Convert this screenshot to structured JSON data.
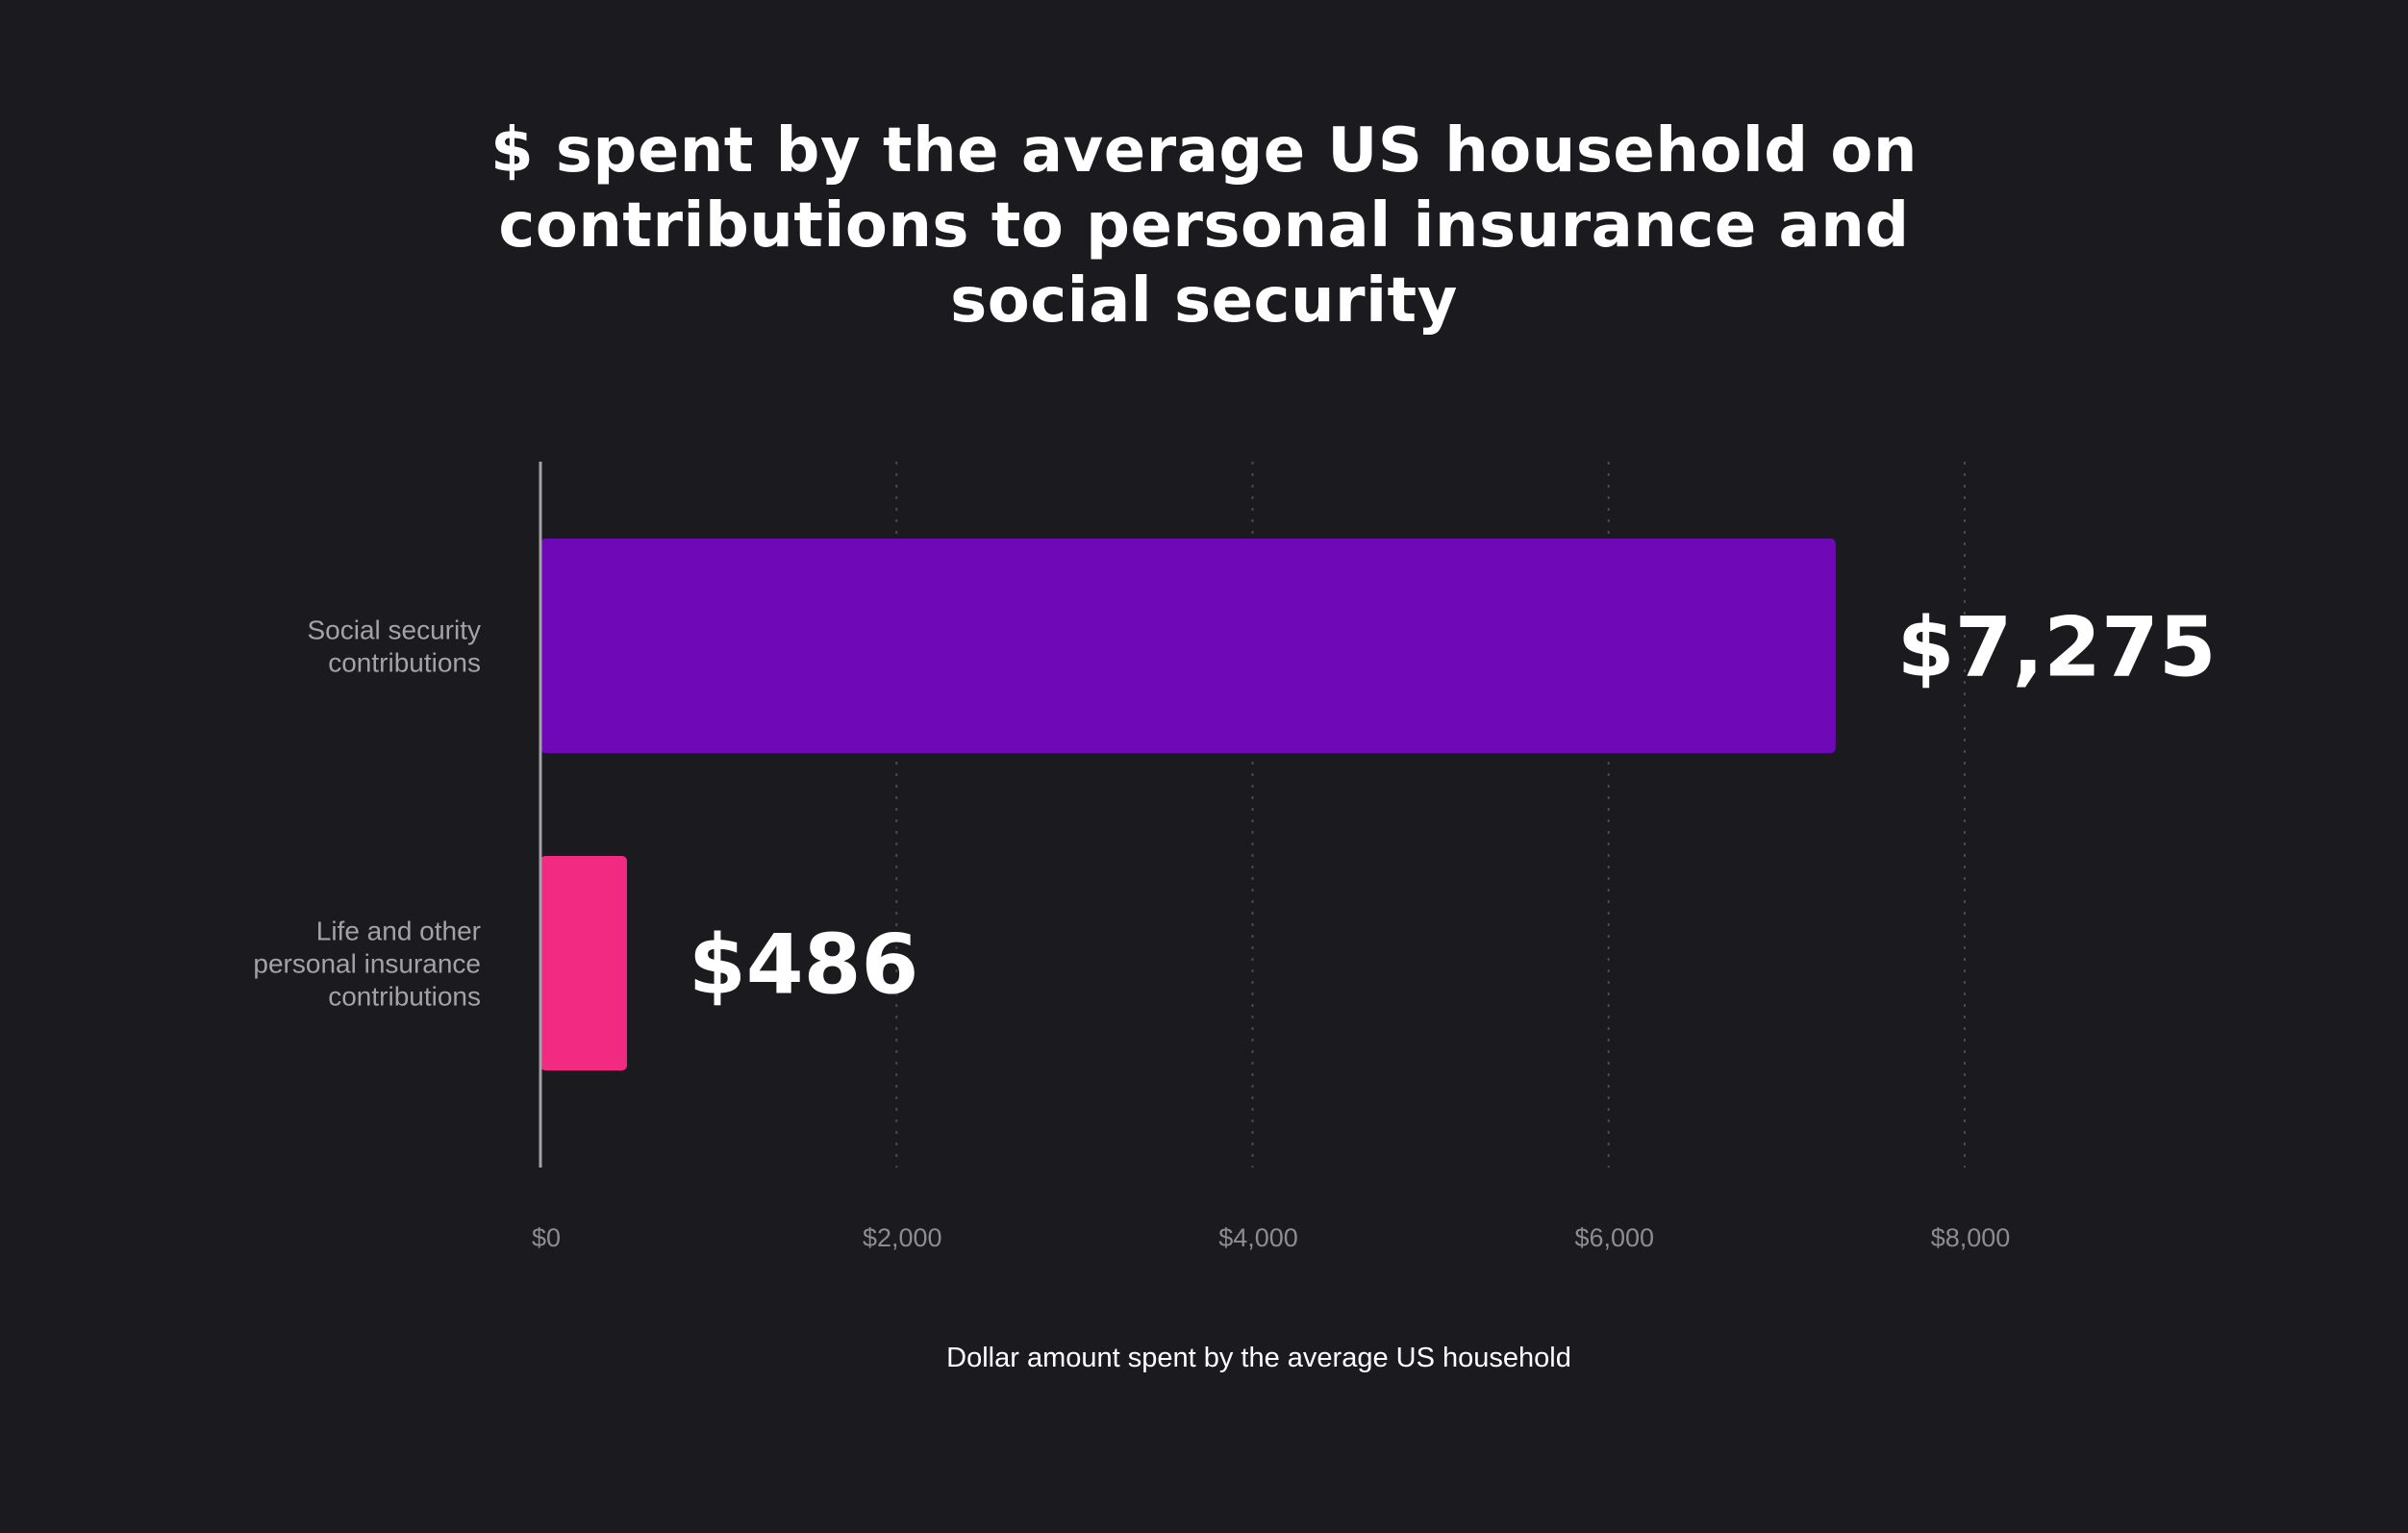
{
  "chart_data": {
    "type": "bar",
    "orientation": "horizontal",
    "title_lines": [
      "$ spent by the average US household on",
      "contributions to personal insurance and",
      "social security"
    ],
    "categories": [
      [
        "Social security",
        "contributions"
      ],
      [
        "Life and other",
        "personal insurance",
        "contributions"
      ]
    ],
    "values": [
      7275,
      486
    ],
    "value_labels": [
      "$7,275",
      "$486"
    ],
    "colors": [
      "#6f09b7",
      "#f22a82"
    ],
    "xlim": [
      0,
      8000
    ],
    "xticks": [
      0,
      2000,
      4000,
      6000,
      8000
    ],
    "xtick_labels": [
      "$0",
      "$2,000",
      "$4,000",
      "$6,000",
      "$8,000"
    ],
    "xlabel": "Dollar amount spent by the average US household",
    "grid": "vertical dotted"
  }
}
